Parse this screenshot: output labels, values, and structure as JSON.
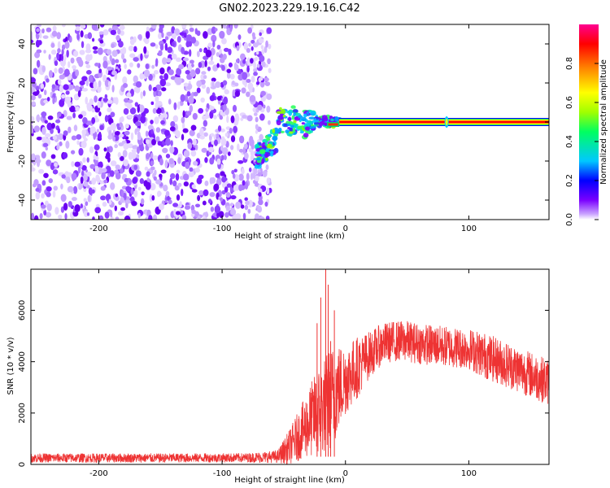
{
  "title": "GN02.2023.229.19.16.C42",
  "chart_data": [
    {
      "type": "heatmap",
      "xlabel": "Height of straight line (km)",
      "ylabel": "Frequency (Hz)",
      "xlim": [
        -255,
        165
      ],
      "ylim": [
        -50,
        50
      ],
      "xticks": [
        -200,
        -100,
        0,
        100
      ],
      "yticks": [
        -40,
        -20,
        0,
        20,
        40
      ],
      "colorbar": {
        "label": "Normalized spectral amplitude",
        "range": [
          0,
          1
        ],
        "ticks": [
          "0.0",
          "0.2",
          "0.4",
          "0.6",
          "0.8"
        ],
        "colormap": [
          "#ffffff",
          "#7a00ff",
          "#0000ff",
          "#00c8ff",
          "#00ff60",
          "#a0ff00",
          "#ffff00",
          "#ff8000",
          "#ff0000",
          "#ff0090"
        ]
      },
      "features": {
        "noise_region_x": [
          -255,
          -65
        ],
        "noise_amplitude": [
          0.0,
          0.15
        ],
        "transition_region_x": [
          -72,
          -5
        ],
        "signal_line_x": [
          -5,
          165
        ],
        "signal_line_freq": 0,
        "signal_line_amplitude": 1.0,
        "blip_x": 82
      }
    },
    {
      "type": "line",
      "xlabel": "Height of straight line (km)",
      "ylabel": "SNR (10 * v/v)",
      "xlim": [
        -255,
        165
      ],
      "ylim": [
        0,
        7600
      ],
      "xticks": [
        -200,
        -100,
        0,
        100
      ],
      "yticks": [
        0,
        2000,
        4000,
        6000
      ],
      "color": "#ee3333",
      "envelope": {
        "x": [
          -255,
          -150,
          -80,
          -55,
          -45,
          -35,
          -25,
          -15,
          -10,
          -5,
          0,
          10,
          20,
          30,
          40,
          50,
          60,
          70,
          80,
          90,
          100,
          110,
          120,
          130,
          140,
          150,
          160,
          165
        ],
        "mean": [
          250,
          250,
          260,
          300,
          700,
          1300,
          1900,
          2400,
          2700,
          3000,
          3300,
          3800,
          4300,
          4700,
          4800,
          4800,
          4700,
          4650,
          4600,
          4550,
          4500,
          4300,
          4100,
          3900,
          3700,
          3500,
          3300,
          3200
        ],
        "spread": [
          180,
          180,
          180,
          250,
          700,
          1100,
          1600,
          2000,
          2000,
          1700,
          1400,
          1200,
          900,
          800,
          800,
          800,
          800,
          800,
          800,
          800,
          800,
          900,
          900,
          900,
          900,
          900,
          900,
          900
        ]
      },
      "spikes": [
        {
          "x": -16,
          "y": 7600
        },
        {
          "x": -14,
          "y": 7000
        },
        {
          "x": -20,
          "y": 6500
        },
        {
          "x": -9,
          "y": 6000
        },
        {
          "x": -23,
          "y": 5500
        },
        {
          "x": -12,
          "y": 4800
        }
      ]
    }
  ]
}
